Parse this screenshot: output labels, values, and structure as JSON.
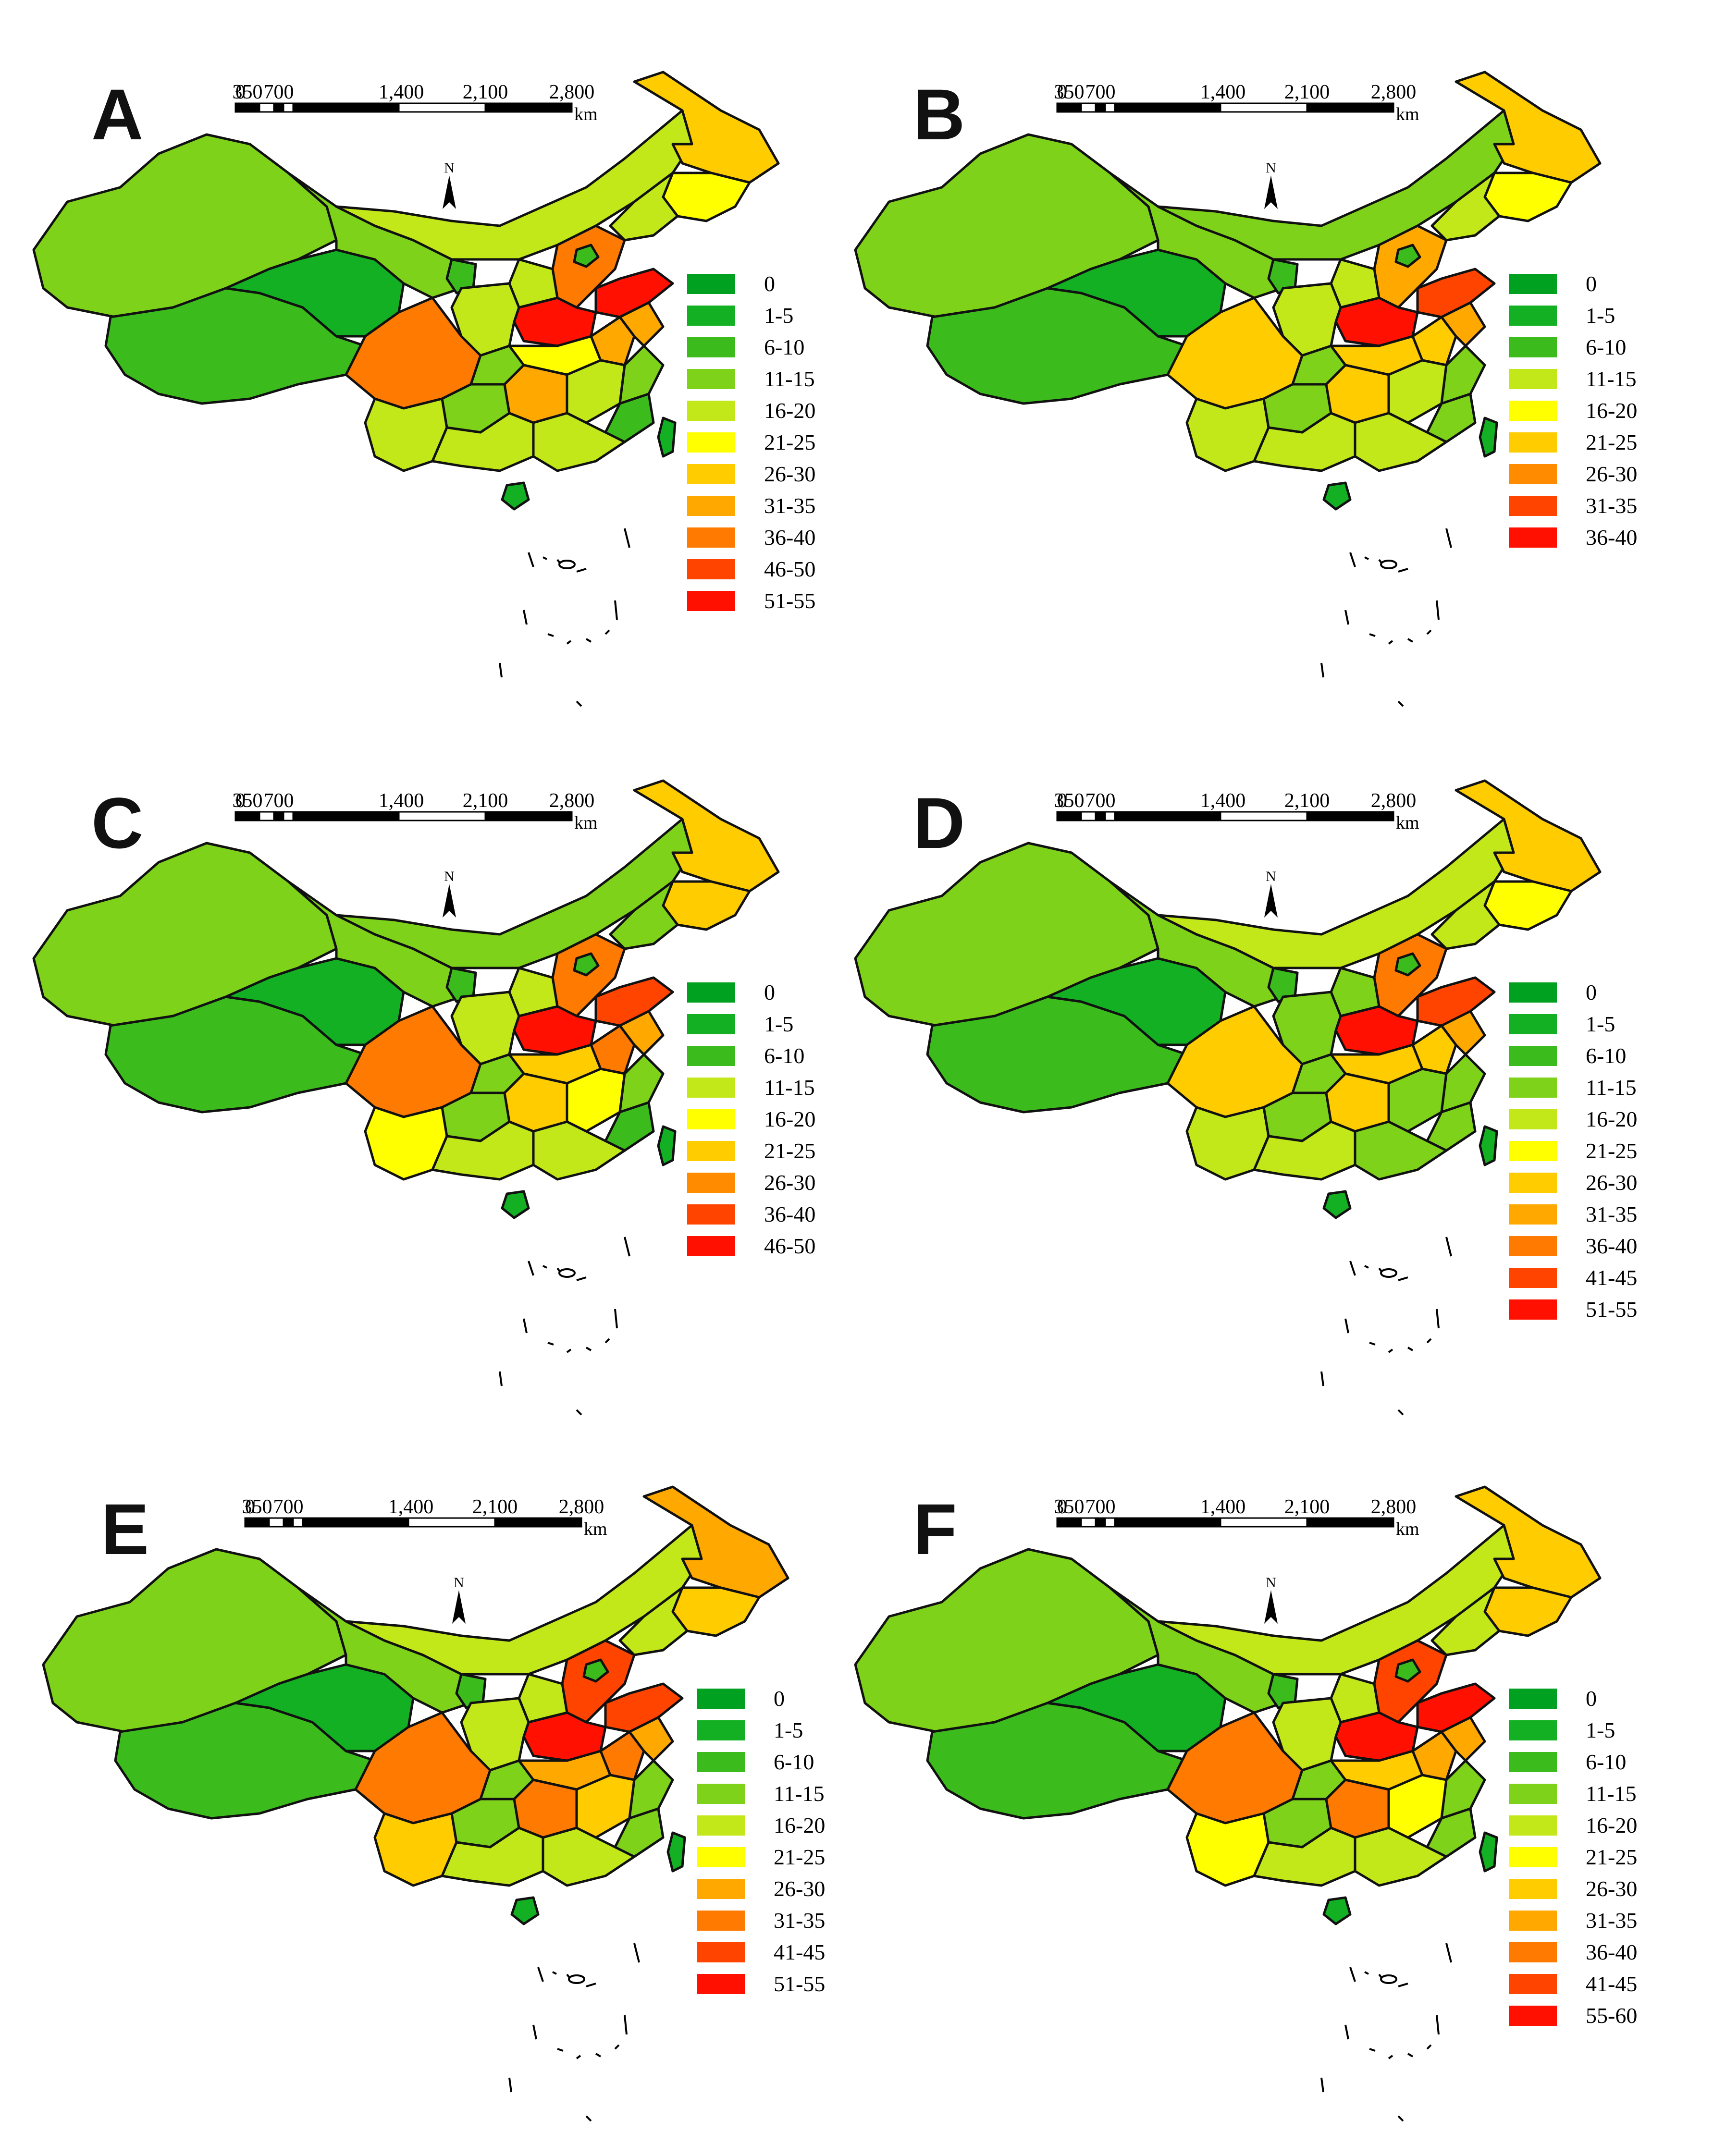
{
  "figure": {
    "scale_ticks": [
      "0",
      "350",
      "700",
      "1,400",
      "2,100",
      "2,800"
    ],
    "scale_unit": "km",
    "north_label": "N",
    "colors": {
      "c0": "#00a020",
      "c1": "#12b022",
      "c2": "#3cbc1c",
      "c3": "#7fd21a",
      "c4": "#c2e81a",
      "c5": "#ffff00",
      "c6": "#ffcc00",
      "c7": "#ffa800",
      "c8": "#ff7a00",
      "c9": "#ff4400",
      "c10": "#ff1000",
      "base": "#38b81c",
      "west": "#2fae22",
      "border": "#111111"
    },
    "panels": [
      {
        "letter": "A",
        "legend": [
          {
            "label": "0",
            "color": "#00a020"
          },
          {
            "label": "1-5",
            "color": "#12b022"
          },
          {
            "label": "6-10",
            "color": "#3cbc1c"
          },
          {
            "label": "11-15",
            "color": "#7fd21a"
          },
          {
            "label": "16-20",
            "color": "#c2e81a"
          },
          {
            "label": "21-25",
            "color": "#ffff00"
          },
          {
            "label": "26-30",
            "color": "#ffcc00"
          },
          {
            "label": "31-35",
            "color": "#ffa800"
          },
          {
            "label": "36-40",
            "color": "#ff7a00"
          },
          {
            "label": "46-50",
            "color": "#ff4400"
          },
          {
            "label": "51-55",
            "color": "#ff1000"
          }
        ]
      },
      {
        "letter": "B",
        "legend": [
          {
            "label": "0",
            "color": "#00a020"
          },
          {
            "label": "1-5",
            "color": "#12b022"
          },
          {
            "label": "6-10",
            "color": "#3cbc1c"
          },
          {
            "label": "11-15",
            "color": "#c2e81a"
          },
          {
            "label": "16-20",
            "color": "#ffff00"
          },
          {
            "label": "21-25",
            "color": "#ffcc00"
          },
          {
            "label": "26-30",
            "color": "#ff8c00"
          },
          {
            "label": "31-35",
            "color": "#ff4400"
          },
          {
            "label": "36-40",
            "color": "#ff1000"
          }
        ]
      },
      {
        "letter": "C",
        "legend": [
          {
            "label": "0",
            "color": "#00a020"
          },
          {
            "label": "1-5",
            "color": "#12b022"
          },
          {
            "label": "6-10",
            "color": "#3cbc1c"
          },
          {
            "label": "11-15",
            "color": "#c2e81a"
          },
          {
            "label": "16-20",
            "color": "#ffff00"
          },
          {
            "label": "21-25",
            "color": "#ffcc00"
          },
          {
            "label": "26-30",
            "color": "#ff8c00"
          },
          {
            "label": "36-40",
            "color": "#ff4400"
          },
          {
            "label": "46-50",
            "color": "#ff1000"
          }
        ]
      },
      {
        "letter": "D",
        "legend": [
          {
            "label": "0",
            "color": "#00a020"
          },
          {
            "label": "1-5",
            "color": "#12b022"
          },
          {
            "label": "6-10",
            "color": "#3cbc1c"
          },
          {
            "label": "11-15",
            "color": "#7fd21a"
          },
          {
            "label": "16-20",
            "color": "#c2e81a"
          },
          {
            "label": "21-25",
            "color": "#ffff00"
          },
          {
            "label": "26-30",
            "color": "#ffcc00"
          },
          {
            "label": "31-35",
            "color": "#ffa800"
          },
          {
            "label": "36-40",
            "color": "#ff7a00"
          },
          {
            "label": "41-45",
            "color": "#ff4400"
          },
          {
            "label": "51-55",
            "color": "#ff1000"
          }
        ]
      },
      {
        "letter": "E",
        "legend": [
          {
            "label": "0",
            "color": "#00a020"
          },
          {
            "label": "1-5",
            "color": "#12b022"
          },
          {
            "label": "6-10",
            "color": "#3cbc1c"
          },
          {
            "label": "11-15",
            "color": "#7fd21a"
          },
          {
            "label": "16-20",
            "color": "#c2e81a"
          },
          {
            "label": "21-25",
            "color": "#ffff00"
          },
          {
            "label": "26-30",
            "color": "#ffa800"
          },
          {
            "label": "31-35",
            "color": "#ff7a00"
          },
          {
            "label": "41-45",
            "color": "#ff4400"
          },
          {
            "label": "51-55",
            "color": "#ff1000"
          }
        ]
      },
      {
        "letter": "F",
        "legend": [
          {
            "label": "0",
            "color": "#00a020"
          },
          {
            "label": "1-5",
            "color": "#12b022"
          },
          {
            "label": "6-10",
            "color": "#3cbc1c"
          },
          {
            "label": "11-15",
            "color": "#7fd21a"
          },
          {
            "label": "16-20",
            "color": "#c2e81a"
          },
          {
            "label": "21-25",
            "color": "#ffff00"
          },
          {
            "label": "26-30",
            "color": "#ffcc00"
          },
          {
            "label": "31-35",
            "color": "#ffa800"
          },
          {
            "label": "36-40",
            "color": "#ff7a00"
          },
          {
            "label": "41-45",
            "color": "#ff4400"
          },
          {
            "label": "55-60",
            "color": "#ff1000"
          }
        ]
      }
    ]
  }
}
